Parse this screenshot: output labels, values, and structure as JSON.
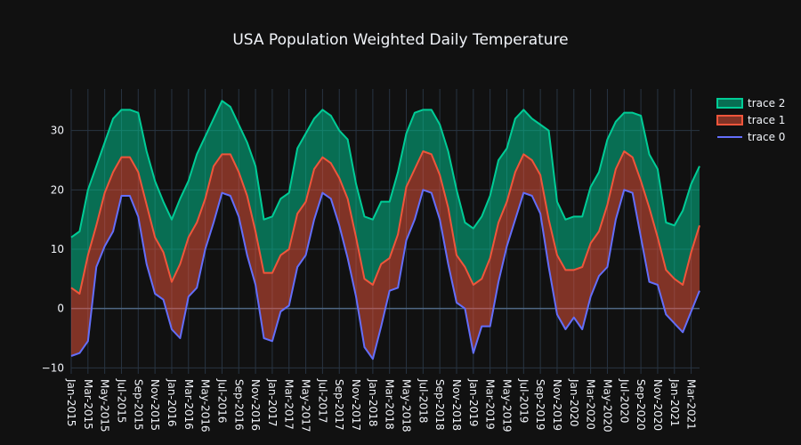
{
  "chart_data": {
    "type": "area",
    "title": "USA Population Weighted Daily Temperature",
    "xlabel": "",
    "ylabel": "",
    "ylim": [
      -11,
      37
    ],
    "y_ticks": [
      -10,
      0,
      10,
      20,
      30
    ],
    "grid": true,
    "legend_position": "top-right",
    "x_tick_labels": [
      "Jan-2015",
      "Mar-2015",
      "May-2015",
      "Jul-2015",
      "Sep-2015",
      "Nov-2015",
      "Jan-2016",
      "Mar-2016",
      "May-2016",
      "Jul-2016",
      "Sep-2016",
      "Nov-2016",
      "Jan-2017",
      "Mar-2017",
      "May-2017",
      "Jul-2017",
      "Sep-2017",
      "Nov-2017",
      "Jan-2018",
      "Mar-2018",
      "May-2018",
      "Jul-2018",
      "Sep-2018",
      "Nov-2018",
      "Jan-2019",
      "Mar-2019",
      "May-2019",
      "Jul-2019",
      "Sep-2019",
      "Nov-2019",
      "Jan-2020",
      "Mar-2020",
      "May-2020",
      "Jul-2020",
      "Sep-2020",
      "Nov-2020",
      "Jan-2021",
      "Mar-2021"
    ],
    "legend": [
      "trace 2",
      "trace 1",
      "trace 0"
    ],
    "series": [
      {
        "name": "trace 0",
        "color": "#636efa",
        "fill": false,
        "values": [
          -8,
          -7.5,
          -5.5,
          7,
          10.5,
          13,
          19,
          19,
          15.5,
          7.5,
          2.5,
          1.5,
          -3.5,
          -5,
          2,
          3.5,
          10,
          14.5,
          19.5,
          19,
          15.5,
          9,
          4,
          -5,
          -5.5,
          -0.5,
          0.5,
          7,
          9,
          15,
          19.5,
          18.5,
          14,
          8.5,
          2,
          -6.5,
          -8.5,
          -3,
          3,
          3.5,
          11.5,
          15,
          20,
          19.5,
          15,
          7.5,
          1,
          0,
          -7.5,
          -3,
          -3,
          4.5,
          10.5,
          15,
          19.5,
          19,
          16,
          7,
          -1,
          -3.5,
          -1.5,
          -3.5,
          2,
          5.5,
          7,
          15,
          20,
          19.5,
          12,
          4.5,
          4,
          -1,
          -2.5,
          -4,
          -0.5,
          3
        ]
      },
      {
        "name": "trace 1",
        "color": "#ef553b",
        "fill": true,
        "fill_color": "rgba(239,85,59,0.5)",
        "values": [
          3.5,
          2.5,
          9,
          14,
          19.5,
          23,
          25.5,
          25.5,
          23,
          17.5,
          12,
          9.5,
          4.5,
          7.5,
          12,
          14.5,
          18.5,
          24,
          26,
          26,
          23,
          19,
          13,
          6,
          6,
          9,
          10,
          16,
          18,
          23.5,
          25.5,
          24.5,
          22,
          18.5,
          12,
          5,
          4,
          7.5,
          8.5,
          12.5,
          20.5,
          23.5,
          26.5,
          26,
          22.5,
          17,
          9,
          7,
          4,
          5,
          8.5,
          14.5,
          18,
          23,
          26,
          25,
          22.5,
          15,
          9,
          6.5,
          6.5,
          7,
          11,
          13,
          17.5,
          23.5,
          26.5,
          25.5,
          21.5,
          17,
          12,
          6.5,
          5,
          4,
          9.5,
          14
        ]
      },
      {
        "name": "trace 2",
        "color": "#00cc96",
        "fill": true,
        "fill_color": "rgba(0,204,150,0.5)",
        "values": [
          12,
          13,
          20,
          24,
          28,
          32,
          33.5,
          33.5,
          33,
          26.5,
          21.5,
          18,
          15,
          18.5,
          21.5,
          26,
          29,
          32,
          35,
          34,
          31,
          28,
          24,
          15,
          15.5,
          18.5,
          19.5,
          27,
          29.5,
          32,
          33.5,
          32.5,
          30,
          28.5,
          21,
          15.5,
          15,
          18,
          18,
          23,
          29.5,
          33,
          33.5,
          33.5,
          31,
          26.5,
          20,
          14.5,
          13.5,
          15.5,
          19,
          25,
          27,
          32,
          33.5,
          32,
          31,
          30,
          18,
          15,
          15.5,
          15.5,
          20.5,
          23,
          28.5,
          31.5,
          33,
          33,
          32.5,
          26,
          23.5,
          14.5,
          14,
          16.5,
          21,
          24
        ]
      }
    ]
  }
}
